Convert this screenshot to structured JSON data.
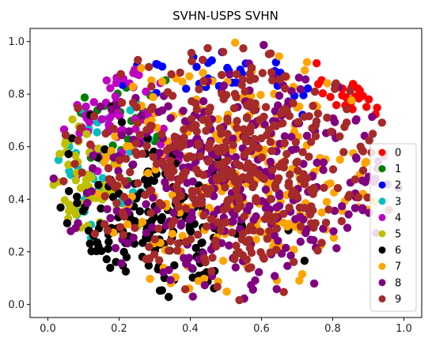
{
  "chart_data": {
    "type": "scatter",
    "title": "SVHN-USPS SVHN",
    "xlabel": "",
    "ylabel": "",
    "xlim": [
      -0.05,
      1.05
    ],
    "ylim": [
      -0.05,
      1.05
    ],
    "x_ticks": [
      0.0,
      0.2,
      0.4,
      0.6,
      0.8,
      1.0
    ],
    "x_tick_labels": [
      "0.0",
      "0.2",
      "0.4",
      "0.6",
      "0.8",
      "1.0"
    ],
    "y_ticks": [
      0.0,
      0.2,
      0.4,
      0.6,
      0.8,
      1.0
    ],
    "y_tick_labels": [
      "0.0",
      "0.2",
      "0.4",
      "0.6",
      "0.8",
      "1.0"
    ],
    "grid": false,
    "legend_position": "center-right",
    "series": [
      {
        "name": "0",
        "color": "#ff0000",
        "point_count": 25,
        "center": [
          0.9,
          0.82
        ],
        "spread": [
          0.06,
          0.05
        ]
      },
      {
        "name": "1",
        "color": "#008000",
        "point_count": 30,
        "center": [
          0.2,
          0.72
        ],
        "spread": [
          0.1,
          0.12
        ]
      },
      {
        "name": "2",
        "color": "#0000ff",
        "point_count": 35,
        "center": [
          0.55,
          0.88
        ],
        "spread": [
          0.2,
          0.06
        ]
      },
      {
        "name": "3",
        "color": "#00bfbf",
        "point_count": 45,
        "center": [
          0.15,
          0.55
        ],
        "spread": [
          0.08,
          0.16
        ]
      },
      {
        "name": "4",
        "color": "#bf00bf",
        "point_count": 60,
        "center": [
          0.2,
          0.72
        ],
        "spread": [
          0.08,
          0.1
        ]
      },
      {
        "name": "5",
        "color": "#bfbf00",
        "point_count": 55,
        "center": [
          0.1,
          0.45
        ],
        "spread": [
          0.07,
          0.15
        ]
      },
      {
        "name": "6",
        "color": "#000000",
        "point_count": 170,
        "center": [
          0.28,
          0.3
        ],
        "spread": [
          0.15,
          0.15
        ]
      },
      {
        "name": "7",
        "color": "#ffa500",
        "point_count": 220,
        "center": [
          0.55,
          0.5
        ],
        "spread": [
          0.2,
          0.22
        ]
      },
      {
        "name": "8",
        "color": "#800080",
        "point_count": 320,
        "center": [
          0.55,
          0.45
        ],
        "spread": [
          0.24,
          0.24
        ]
      },
      {
        "name": "9",
        "color": "#a52a2a",
        "point_count": 420,
        "center": [
          0.52,
          0.52
        ],
        "spread": [
          0.22,
          0.22
        ]
      }
    ]
  }
}
